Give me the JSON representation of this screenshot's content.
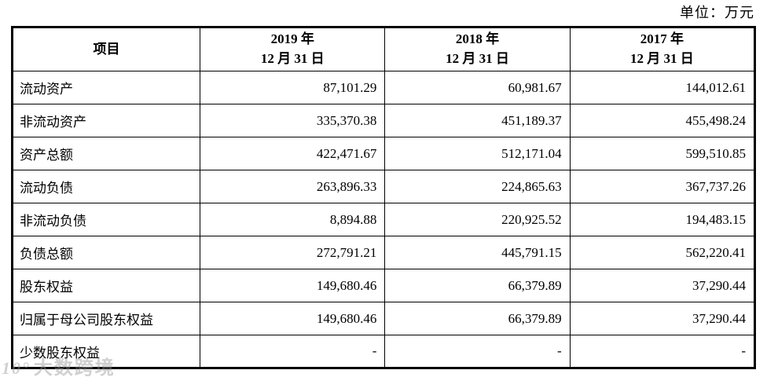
{
  "page": {
    "unit_label": "单位：万元"
  },
  "watermark": {
    "logo": "10°",
    "text": "大数跨境"
  },
  "table": {
    "item_header": "项目",
    "columns": [
      {
        "line1": "2019 年",
        "line2": "12 月 31 日"
      },
      {
        "line1": "2018 年",
        "line2": "12 月 31 日"
      },
      {
        "line1": "2017 年",
        "line2": "12 月 31 日"
      }
    ],
    "rows": [
      {
        "label": "流动资产",
        "values": [
          "87,101.29",
          "60,981.67",
          "144,012.61"
        ]
      },
      {
        "label": "非流动资产",
        "values": [
          "335,370.38",
          "451,189.37",
          "455,498.24"
        ]
      },
      {
        "label": "资产总额",
        "values": [
          "422,471.67",
          "512,171.04",
          "599,510.85"
        ]
      },
      {
        "label": "流动负债",
        "values": [
          "263,896.33",
          "224,865.63",
          "367,737.26"
        ]
      },
      {
        "label": "非流动负债",
        "values": [
          "8,894.88",
          "220,925.52",
          "194,483.15"
        ]
      },
      {
        "label": "负债总额",
        "values": [
          "272,791.21",
          "445,791.15",
          "562,220.41"
        ]
      },
      {
        "label": "股东权益",
        "values": [
          "149,680.46",
          "66,379.89",
          "37,290.44"
        ]
      },
      {
        "label": "归属于母公司股东权益",
        "values": [
          "149,680.46",
          "66,379.89",
          "37,290.44"
        ]
      },
      {
        "label": "少数股东权益",
        "values": [
          "-",
          "-",
          "-"
        ]
      }
    ]
  }
}
